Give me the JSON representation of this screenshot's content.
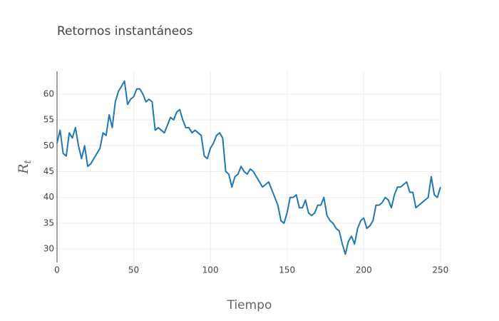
{
  "chart_data": {
    "type": "line",
    "title": "Retornos instantáneos",
    "x_label": "Tiempo",
    "y_label": {
      "base": "R",
      "subscript": "t"
    },
    "xlim": [
      0,
      251
    ],
    "ylim": [
      27.4,
      64.4
    ],
    "xticks": [
      0,
      50,
      100,
      150,
      200,
      250
    ],
    "yticks": [
      30,
      35,
      40,
      45,
      50,
      55,
      60
    ],
    "grid": true,
    "series": [
      {
        "color": "#1f77b4",
        "x": [
          0,
          2,
          4,
          6,
          8,
          10,
          12,
          14,
          16,
          18,
          20,
          22,
          24,
          26,
          28,
          30,
          32,
          34,
          36,
          38,
          40,
          42,
          44,
          46,
          48,
          50,
          52,
          54,
          56,
          58,
          60,
          62,
          64,
          66,
          68,
          70,
          72,
          74,
          76,
          78,
          80,
          82,
          84,
          86,
          88,
          90,
          92,
          94,
          96,
          98,
          100,
          102,
          104,
          106,
          108,
          110,
          112,
          114,
          116,
          118,
          120,
          122,
          124,
          126,
          128,
          130,
          132,
          134,
          136,
          138,
          140,
          142,
          144,
          146,
          148,
          150,
          152,
          154,
          156,
          158,
          160,
          162,
          164,
          166,
          168,
          170,
          172,
          174,
          176,
          178,
          180,
          182,
          184,
          186,
          188,
          190,
          192,
          194,
          196,
          198,
          200,
          202,
          204,
          206,
          208,
          210,
          212,
          214,
          216,
          218,
          220,
          222,
          224,
          226,
          228,
          230,
          232,
          234,
          236,
          238,
          240,
          242,
          244,
          246,
          248,
          250
        ],
        "values": [
          50.5,
          53,
          48.5,
          48,
          52.5,
          51.5,
          53.5,
          50,
          47.5,
          50,
          46,
          46.5,
          47.5,
          48.5,
          49.5,
          52.5,
          52,
          56,
          53.5,
          58.5,
          60.5,
          61.5,
          62.5,
          58,
          59,
          59.5,
          61,
          61,
          60,
          58.5,
          59,
          58.5,
          53,
          53.5,
          53,
          52.5,
          54,
          55.5,
          55,
          56.5,
          57,
          55,
          53.5,
          53.5,
          52.5,
          53,
          52.5,
          52,
          48,
          47.5,
          49.5,
          50.5,
          52,
          52.5,
          51.5,
          45,
          44.5,
          42,
          44,
          44.5,
          46,
          45,
          44.5,
          45.5,
          45,
          44,
          43,
          42,
          42.5,
          43,
          41.5,
          40,
          38.5,
          35.5,
          35,
          37,
          40,
          40,
          40.5,
          38,
          38,
          39.5,
          37,
          36.5,
          37,
          38.5,
          38.5,
          40,
          36.5,
          35.5,
          35,
          34,
          33.5,
          31,
          29,
          31.5,
          32.5,
          31,
          34,
          35.5,
          36,
          34,
          34.5,
          35.5,
          38.5,
          38.5,
          39,
          40,
          39.5,
          38,
          40.5,
          42,
          42,
          42.5,
          43,
          41,
          41,
          38,
          38.5,
          39,
          39.5,
          40,
          44,
          40.5,
          40,
          42
        ]
      }
    ]
  }
}
